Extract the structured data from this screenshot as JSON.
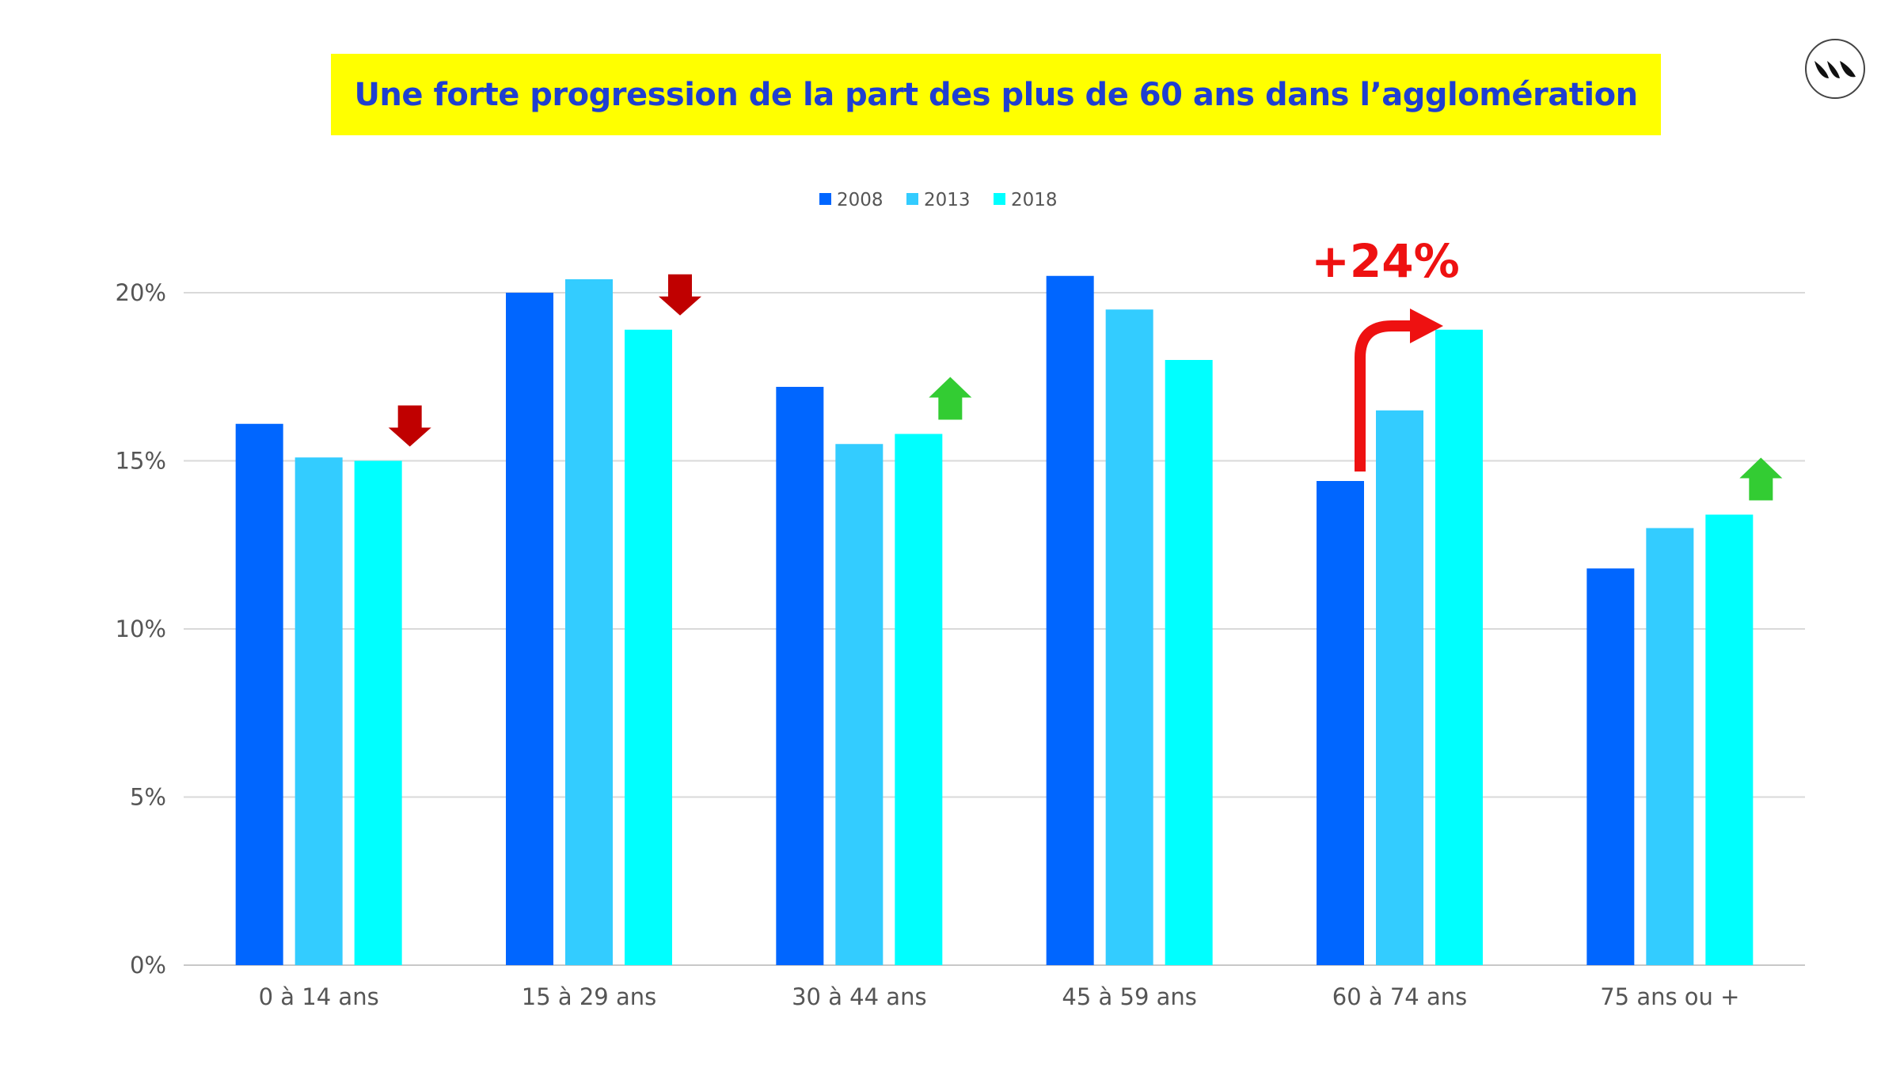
{
  "title": "Une forte progression de la part des plus de 60 ans dans l’agglomération",
  "chart_data": {
    "type": "bar",
    "categories": [
      "0 à 14 ans",
      "15 à 29 ans",
      "30 à 44 ans",
      "45 à 59 ans",
      "60 à 74 ans",
      "75 ans ou +"
    ],
    "series": [
      {
        "name": "2008",
        "color": "#0066ff",
        "values": [
          16.1,
          20.0,
          17.2,
          20.5,
          14.4,
          11.8
        ]
      },
      {
        "name": "2013",
        "color": "#33ccff",
        "values": [
          15.1,
          20.4,
          15.5,
          19.5,
          16.5,
          13.0
        ]
      },
      {
        "name": "2018",
        "color": "#00ffff",
        "values": [
          15.0,
          18.9,
          15.8,
          18.0,
          18.9,
          13.4
        ]
      }
    ],
    "ylim": [
      0,
      20
    ],
    "yticks": [
      "0%",
      "5%",
      "10%",
      "15%",
      "20%"
    ],
    "ytick_values": [
      0,
      5,
      10,
      15,
      20
    ],
    "grid": true,
    "legend_position": "top-center",
    "annotations": [
      {
        "text": "+24%",
        "color": "#ee1111",
        "category": "60 à 74 ans"
      }
    ],
    "trend_arrows": [
      {
        "category": "0 à 14 ans",
        "direction": "down",
        "color": "#c00000"
      },
      {
        "category": "15 à 29 ans",
        "direction": "down",
        "color": "#c00000"
      },
      {
        "category": "30 à 44 ans",
        "direction": "up",
        "color": "#33cc33"
      },
      {
        "category": "75 ans ou +",
        "direction": "up",
        "color": "#33cc33"
      }
    ]
  },
  "logo": {
    "icon": "leaf-logo-icon"
  }
}
